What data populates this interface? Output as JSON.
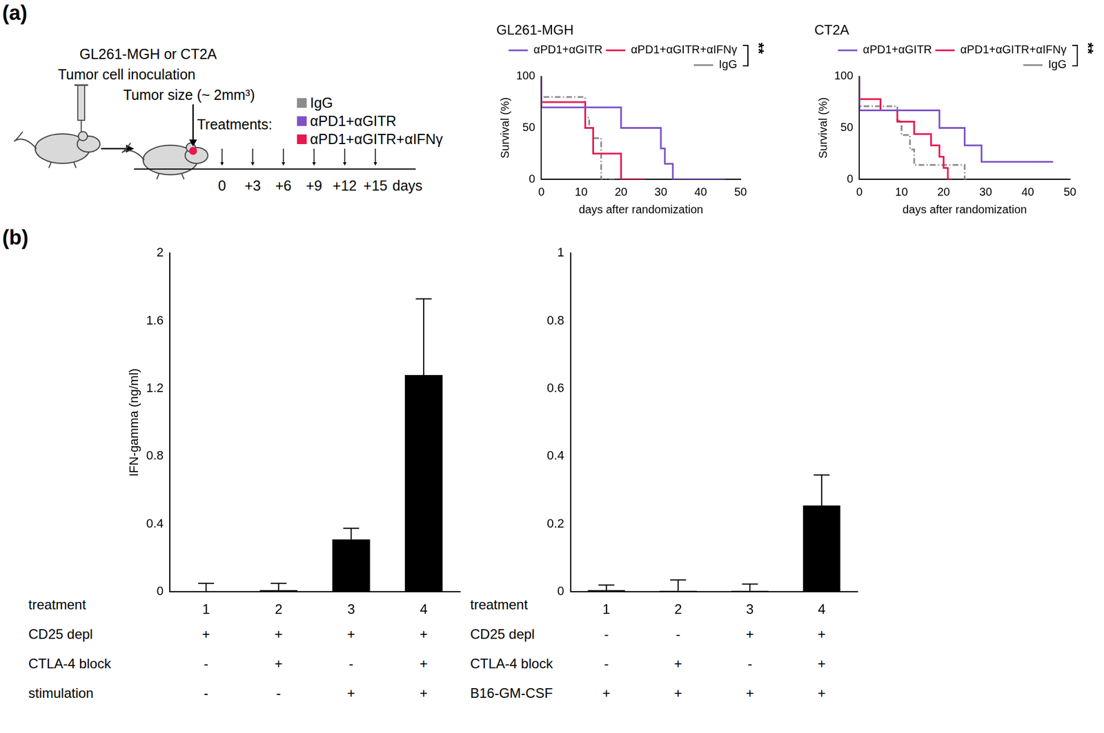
{
  "panel_labels": {
    "a": "(a)",
    "b": "(b)"
  },
  "schematic": {
    "inoculation": [
      "GL261-MGH or CT2A",
      "Tumor cell inoculation"
    ],
    "tumor_size": "Tumor size (~ 2mm³)",
    "treatments_label": "Treatments:",
    "treatments": [
      {
        "name": "IgG",
        "color": "#8c8c8c"
      },
      {
        "name": "αPD1+αGITR",
        "color": "#7d52c7"
      },
      {
        "name": "αPD1+αGITR+αIFNγ",
        "color": "#e8174f"
      }
    ],
    "timeline": [
      "0",
      "+3",
      "+6",
      "+9",
      "+12",
      "+15"
    ],
    "timeline_unit": "days"
  },
  "chart_data": [
    {
      "type": "line",
      "title": "GL261-MGH",
      "x_label": "days after randomization",
      "y_label": "Survival (%)",
      "xlim": [
        0,
        50
      ],
      "xticks": [
        0,
        10,
        20,
        30,
        40,
        50
      ],
      "ylim": [
        0,
        100
      ],
      "yticks": [
        0,
        50,
        100
      ],
      "grid": false,
      "legend": "top",
      "line_style": "step",
      "annotations": [
        "**"
      ],
      "series": [
        {
          "name": "αPD1+αGITR",
          "color": "#7d52c7",
          "x": [
            0,
            20,
            30,
            31,
            33,
            46
          ],
          "values": [
            100,
            70,
            50,
            30,
            15,
            0
          ]
        },
        {
          "name": "αPD1+αGITR+αIFNγ",
          "color": "#e8174f",
          "x": [
            0,
            11,
            13,
            20,
            26
          ],
          "values": [
            100,
            75,
            50,
            25,
            0
          ]
        },
        {
          "name": "IgG",
          "color": "#8c8c8c",
          "line_style": "dashdot",
          "x": [
            0,
            11,
            12,
            13,
            15,
            19
          ],
          "values": [
            100,
            80,
            60,
            50,
            40,
            0
          ]
        }
      ]
    },
    {
      "type": "line",
      "title": "CT2A",
      "x_label": "days after randomization",
      "y_label": "Survival (%)",
      "xlim": [
        0,
        50
      ],
      "xticks": [
        0,
        10,
        20,
        30,
        40,
        50
      ],
      "ylim": [
        0,
        100
      ],
      "yticks": [
        0,
        50,
        100
      ],
      "grid": false,
      "legend": "top",
      "line_style": "step",
      "annotations": [
        "**"
      ],
      "series": [
        {
          "name": "αPD1+αGITR",
          "color": "#7d52c7",
          "x": [
            0,
            19,
            25,
            29,
            31,
            46
          ],
          "values": [
            100,
            67,
            50,
            33,
            17,
            17
          ]
        },
        {
          "name": "αPD1+αGITR+αIFNγ",
          "color": "#e8174f",
          "x": [
            0,
            5,
            9,
            13,
            17,
            19,
            20,
            21,
            22
          ],
          "values": [
            100,
            78,
            67,
            56,
            44,
            33,
            22,
            11,
            0
          ]
        },
        {
          "name": "IgG",
          "color": "#8c8c8c",
          "line_style": "dashdot",
          "x": [
            0,
            9,
            10,
            12,
            13,
            25,
            26
          ],
          "values": [
            100,
            71,
            57,
            43,
            29,
            14,
            0
          ]
        }
      ]
    },
    {
      "type": "bar",
      "y_label": "IFN-gamma (ng/ml)",
      "categories": [
        "1",
        "2",
        "3",
        "4"
      ],
      "values": [
        0,
        0.01,
        0.31,
        1.28
      ],
      "errors": [
        0.05,
        0.04,
        0.065,
        0.45
      ],
      "color": "#000000",
      "ylim": [
        0,
        2
      ],
      "yticks": [
        0,
        0.4,
        0.8,
        1.2,
        1.6,
        2
      ],
      "grid": false
    },
    {
      "type": "bar",
      "categories": [
        "1",
        "2",
        "3",
        "4"
      ],
      "values": [
        0.005,
        0.003,
        0.003,
        0.255
      ],
      "errors": [
        0.015,
        0.032,
        0.02,
        0.09
      ],
      "color": "#000000",
      "ylim": [
        0,
        1
      ],
      "yticks": [
        0,
        0.2,
        0.4,
        0.6,
        0.8,
        1
      ],
      "grid": false
    }
  ],
  "condition_tables": [
    {
      "header": "treatment",
      "rows": [
        {
          "label": "CD25 depl",
          "values": [
            "+",
            "+",
            "+",
            "+"
          ]
        },
        {
          "label": "CTLA-4 block",
          "values": [
            "-",
            "+",
            "-",
            "+"
          ]
        },
        {
          "label": "stimulation",
          "values": [
            "-",
            "-",
            "+",
            "+"
          ]
        }
      ]
    },
    {
      "header": "treatment",
      "rows": [
        {
          "label": "CD25 depl",
          "values": [
            "-",
            "-",
            "+",
            "+"
          ]
        },
        {
          "label": "CTLA-4 block",
          "values": [
            "-",
            "+",
            "-",
            "+"
          ]
        },
        {
          "label": "B16-GM-CSF",
          "values": [
            "+",
            "+",
            "+",
            "+"
          ]
        }
      ]
    }
  ]
}
